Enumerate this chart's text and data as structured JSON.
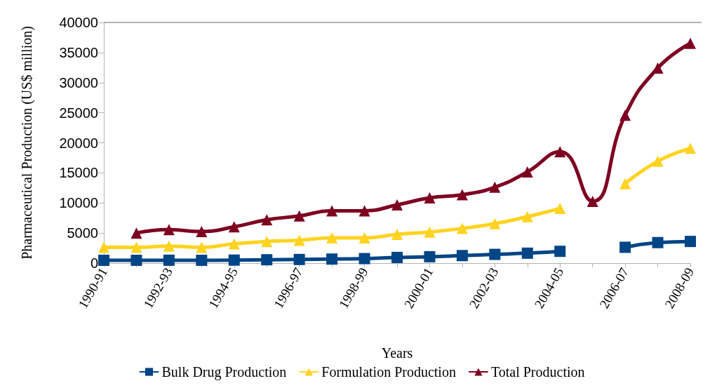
{
  "chart_data": {
    "type": "line",
    "xlabel": "Years",
    "ylabel": "Pharmaceutical Production (US$ million)",
    "categories": [
      "1990-91",
      null,
      "1992-93",
      null,
      "1994-95",
      null,
      "1996-97",
      null,
      "1998-99",
      null,
      "2000-01",
      null,
      "2002-03",
      null,
      "2004-05",
      null,
      "2006-07",
      null,
      "2008-09"
    ],
    "series": [
      {
        "name": "Bulk Drug Production",
        "color": "#004586",
        "marker": "square",
        "values": [
          470,
          470,
          480,
          470,
          500,
          560,
          600,
          670,
          750,
          940,
          1060,
          1250,
          1450,
          1650,
          1960,
          null,
          2630,
          3410,
          3600
        ]
      },
      {
        "name": "Formulation Production",
        "color": "#ffd320",
        "marker": "triangle",
        "values": [
          2630,
          2630,
          2820,
          2630,
          3210,
          3600,
          3800,
          4190,
          4190,
          4780,
          5170,
          5760,
          6550,
          7720,
          9090,
          null,
          13200,
          16930,
          19090
        ]
      },
      {
        "name": "Total Production",
        "color": "#7e0021",
        "marker": "triangle",
        "values": [
          null,
          5000,
          5560,
          5250,
          6030,
          7200,
          7840,
          8700,
          8700,
          9680,
          10850,
          11370,
          12620,
          15170,
          18500,
          10270,
          24580,
          32420,
          36540
        ]
      }
    ],
    "ylim": [
      0,
      40000
    ],
    "yticks": [
      0,
      5000,
      10000,
      15000,
      20000,
      25000,
      30000,
      35000,
      40000
    ],
    "grid": false,
    "legend": "bottom",
    "line_style": "solid"
  }
}
